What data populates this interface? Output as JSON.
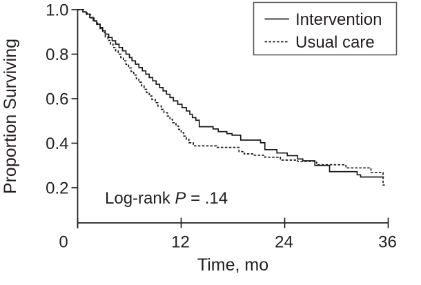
{
  "figure": {
    "background": "#ffffff",
    "ink_color": "#231f20"
  },
  "chart_data": {
    "type": "line",
    "subtype": "kaplan-meier-step",
    "title": "",
    "xlabel": "Time, mo",
    "ylabel": "Proportion Surviving",
    "xlim": [
      0,
      36
    ],
    "ylim": [
      0.04,
      1.0
    ],
    "grid": false,
    "legend_position": "top-right",
    "xticks": [
      {
        "value": 0,
        "label": "0"
      },
      {
        "value": 12,
        "label": "12"
      },
      {
        "value": 24,
        "label": "24"
      },
      {
        "value": 36,
        "label": "36"
      }
    ],
    "yticks": [
      {
        "value": 1.0,
        "label": "1.0"
      },
      {
        "value": 0.8,
        "label": "0.8"
      },
      {
        "value": 0.6,
        "label": "0.6"
      },
      {
        "value": 0.4,
        "label": "0.4"
      },
      {
        "value": 0.2,
        "label": "0.2"
      }
    ],
    "annotation": {
      "prefix": "Log-rank ",
      "italic": "P",
      "suffix": " = .14"
    },
    "series": [
      {
        "name": "Intervention",
        "line_style": "solid",
        "color": "#1a1a1a",
        "points": [
          [
            0,
            1.0
          ],
          [
            0.6,
            0.99
          ],
          [
            1.0,
            0.98
          ],
          [
            1.4,
            0.965
          ],
          [
            1.8,
            0.95
          ],
          [
            2.2,
            0.935
          ],
          [
            2.6,
            0.92
          ],
          [
            2.9,
            0.905
          ],
          [
            3.2,
            0.89
          ],
          [
            3.6,
            0.875
          ],
          [
            4.0,
            0.86
          ],
          [
            4.4,
            0.845
          ],
          [
            4.8,
            0.83
          ],
          [
            5.2,
            0.815
          ],
          [
            5.6,
            0.8
          ],
          [
            6.0,
            0.785
          ],
          [
            6.3,
            0.77
          ],
          [
            6.7,
            0.755
          ],
          [
            7.1,
            0.74
          ],
          [
            7.5,
            0.725
          ],
          [
            7.9,
            0.71
          ],
          [
            8.3,
            0.695
          ],
          [
            8.7,
            0.68
          ],
          [
            9.1,
            0.665
          ],
          [
            9.5,
            0.65
          ],
          [
            9.9,
            0.635
          ],
          [
            10.3,
            0.62
          ],
          [
            10.7,
            0.605
          ],
          [
            11.1,
            0.59
          ],
          [
            11.6,
            0.575
          ],
          [
            12.1,
            0.56
          ],
          [
            12.6,
            0.545
          ],
          [
            13.0,
            0.53
          ],
          [
            13.3,
            0.515
          ],
          [
            13.7,
            0.503
          ],
          [
            14.1,
            0.474
          ],
          [
            15.7,
            0.464
          ],
          [
            16.3,
            0.452
          ],
          [
            17.3,
            0.443
          ],
          [
            17.9,
            0.436
          ],
          [
            18.9,
            0.414
          ],
          [
            21.2,
            0.402
          ],
          [
            21.7,
            0.371
          ],
          [
            23.1,
            0.356
          ],
          [
            24.3,
            0.344
          ],
          [
            25.5,
            0.329
          ],
          [
            26.1,
            0.321
          ],
          [
            27.5,
            0.3
          ],
          [
            29.2,
            0.272
          ],
          [
            32.4,
            0.258
          ],
          [
            32.8,
            0.248
          ],
          [
            35.5,
            0.248
          ]
        ]
      },
      {
        "name": "Usual care",
        "line_style": "dashed",
        "color": "#1a1a1a",
        "points": [
          [
            0,
            1.0
          ],
          [
            0.7,
            0.99
          ],
          [
            1.1,
            0.978
          ],
          [
            1.5,
            0.963
          ],
          [
            1.9,
            0.948
          ],
          [
            2.3,
            0.932
          ],
          [
            2.6,
            0.915
          ],
          [
            2.9,
            0.898
          ],
          [
            3.2,
            0.878
          ],
          [
            3.5,
            0.862
          ],
          [
            3.8,
            0.845
          ],
          [
            4.1,
            0.83
          ],
          [
            4.4,
            0.815
          ],
          [
            4.7,
            0.8
          ],
          [
            5.0,
            0.785
          ],
          [
            5.3,
            0.77
          ],
          [
            5.6,
            0.754
          ],
          [
            5.9,
            0.738
          ],
          [
            6.2,
            0.722
          ],
          [
            6.5,
            0.706
          ],
          [
            6.8,
            0.69
          ],
          [
            7.1,
            0.674
          ],
          [
            7.4,
            0.658
          ],
          [
            7.7,
            0.642
          ],
          [
            8.0,
            0.627
          ],
          [
            8.3,
            0.612
          ],
          [
            8.6,
            0.597
          ],
          [
            9.0,
            0.582
          ],
          [
            9.3,
            0.567
          ],
          [
            9.7,
            0.552
          ],
          [
            10.0,
            0.537
          ],
          [
            10.4,
            0.522
          ],
          [
            10.7,
            0.507
          ],
          [
            11.0,
            0.492
          ],
          [
            11.4,
            0.477
          ],
          [
            11.7,
            0.462
          ],
          [
            12.0,
            0.447
          ],
          [
            12.3,
            0.432
          ],
          [
            12.6,
            0.417
          ],
          [
            12.9,
            0.402
          ],
          [
            13.4,
            0.388
          ],
          [
            16.1,
            0.381
          ],
          [
            18.7,
            0.362
          ],
          [
            19.3,
            0.352
          ],
          [
            20.3,
            0.346
          ],
          [
            21.7,
            0.337
          ],
          [
            23.5,
            0.324
          ],
          [
            25.5,
            0.318
          ],
          [
            27.7,
            0.303
          ],
          [
            31.1,
            0.289
          ],
          [
            34.0,
            0.268
          ],
          [
            35.4,
            0.212
          ],
          [
            35.6,
            0.212
          ]
        ]
      }
    ]
  },
  "legend": {
    "items": [
      {
        "label": "Intervention",
        "style": "solid"
      },
      {
        "label": "Usual care",
        "style": "dashed"
      }
    ]
  }
}
